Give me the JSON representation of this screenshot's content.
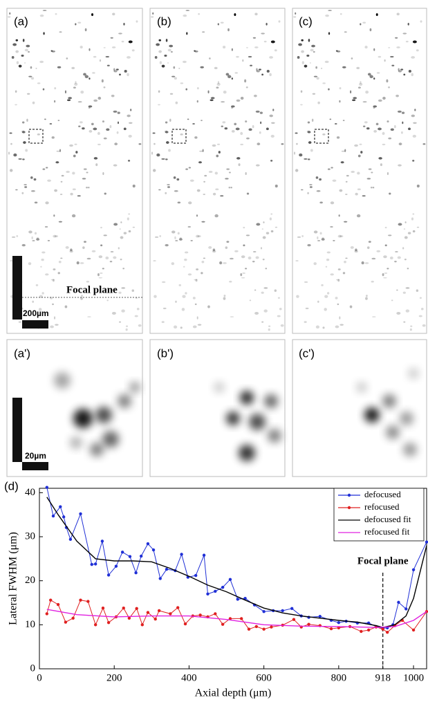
{
  "panels": {
    "a": "(a)",
    "b": "(b)",
    "c": "(c)",
    "a2": "(a')",
    "b2": "(b')",
    "c2": "(c')",
    "d": "(d)",
    "focal_plane": "Focal plane",
    "scale_200": "200µm",
    "scale_20": "20µm"
  },
  "chart_data": {
    "type": "line",
    "xlabel": "Axial depth (μm)",
    "ylabel": "Lateral FWHM (μm)",
    "xlim": [
      0,
      1035
    ],
    "ylim": [
      0,
      41
    ],
    "xticks": [
      0,
      200,
      400,
      600,
      800,
      918,
      1000
    ],
    "yticks": [
      0,
      10,
      20,
      30,
      40
    ],
    "legend": "upper right",
    "annotation": {
      "text": "Focal plane",
      "x": 918
    },
    "series": [
      {
        "name": "defocused",
        "color": "#1f2fd6",
        "markers": true,
        "x": [
          20,
          37,
          56,
          65,
          72,
          83,
          110,
          140,
          150,
          168,
          185,
          205,
          222,
          242,
          258,
          272,
          290,
          305,
          323,
          340,
          363,
          380,
          397,
          418,
          440,
          450,
          470,
          490,
          510,
          530,
          550,
          575,
          600,
          625,
          650,
          675,
          700,
          720,
          750,
          780,
          800,
          820,
          850,
          880,
          900,
          918,
          930,
          945,
          960,
          980,
          1000,
          1035
        ],
        "values": [
          41.2,
          34.7,
          36.8,
          34.5,
          32.1,
          29.4,
          35.2,
          23.7,
          23.8,
          29.0,
          21.3,
          23.3,
          26.5,
          25.5,
          21.8,
          25.6,
          28.4,
          27.0,
          20.5,
          22.6,
          22.3,
          26.0,
          20.8,
          21.2,
          25.8,
          17.0,
          17.6,
          18.5,
          20.3,
          15.8,
          16.0,
          14.5,
          13.0,
          13.2,
          13.2,
          13.7,
          12.0,
          11.7,
          11.9,
          11.0,
          10.5,
          10.8,
          10.4,
          10.4,
          9.6,
          9.2,
          9.3,
          10.0,
          15.1,
          13.6,
          22.5,
          28.8
        ]
      },
      {
        "name": "refocused",
        "color": "#e02020",
        "markers": true,
        "x": [
          20,
          30,
          50,
          70,
          90,
          110,
          130,
          150,
          170,
          185,
          205,
          225,
          240,
          260,
          275,
          290,
          310,
          320,
          350,
          370,
          390,
          410,
          430,
          450,
          470,
          490,
          510,
          540,
          560,
          580,
          600,
          620,
          650,
          680,
          700,
          720,
          750,
          780,
          800,
          830,
          860,
          880,
          900,
          918,
          930,
          950,
          970,
          1000,
          1035
        ],
        "values": [
          12.5,
          15.6,
          14.6,
          10.6,
          11.5,
          15.6,
          15.3,
          10.0,
          13.8,
          10.5,
          11.8,
          13.8,
          11.5,
          13.7,
          10.0,
          12.8,
          11.3,
          13.2,
          12.5,
          13.9,
          10.2,
          12.0,
          12.2,
          11.8,
          12.5,
          10.1,
          11.4,
          11.4,
          9.0,
          9.6,
          9.0,
          9.5,
          9.9,
          11.2,
          9.5,
          10.1,
          9.8,
          9.1,
          9.3,
          9.6,
          8.5,
          8.8,
          9.5,
          9.0,
          8.3,
          9.8,
          11.0,
          8.8,
          13.0
        ]
      },
      {
        "name": "defocused fit",
        "color": "#000000",
        "markers": false,
        "x": [
          20,
          50,
          100,
          150,
          200,
          250,
          300,
          350,
          400,
          450,
          500,
          550,
          600,
          650,
          700,
          750,
          800,
          850,
          900,
          918,
          950,
          980,
          1000,
          1035
        ],
        "values": [
          39,
          35,
          29,
          25,
          24.5,
          24.5,
          24.3,
          22.8,
          21,
          19,
          17.5,
          15.6,
          13.8,
          12.7,
          12.0,
          11.5,
          11.0,
          10.6,
          9.8,
          9.4,
          10,
          12,
          16,
          28
        ]
      },
      {
        "name": "refocused fit",
        "color": "#e020e0",
        "markers": false,
        "x": [
          20,
          100,
          200,
          300,
          400,
          500,
          600,
          700,
          800,
          900,
          950,
          1000,
          1035
        ],
        "values": [
          13.5,
          12.3,
          11.8,
          12.0,
          12.0,
          11.2,
          10.0,
          9.7,
          9.6,
          9.4,
          9.6,
          11,
          13
        ]
      }
    ]
  }
}
